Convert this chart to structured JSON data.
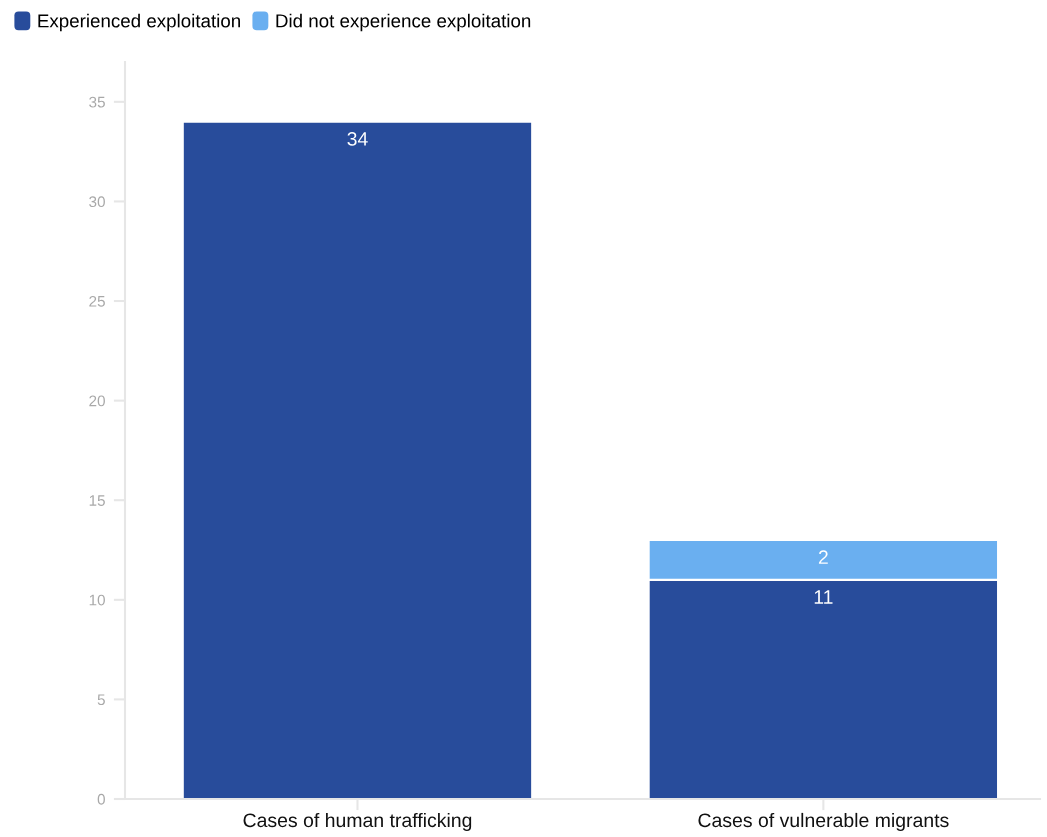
{
  "chart_data": {
    "type": "bar",
    "stacked": true,
    "categories": [
      "Cases of human trafficking",
      "Cases of vulnerable migrants"
    ],
    "series": [
      {
        "name": "Experienced exploitation",
        "color": "#284c9b",
        "values": [
          34,
          11
        ]
      },
      {
        "name": "Did not experience exploitation",
        "color": "#6aaff0",
        "values": [
          null,
          2
        ]
      }
    ],
    "ylim": [
      0,
      37
    ],
    "yticks": [
      0,
      5,
      10,
      15,
      20,
      25,
      30,
      35
    ],
    "grid": false,
    "legend": "top left",
    "data_labels": true
  }
}
